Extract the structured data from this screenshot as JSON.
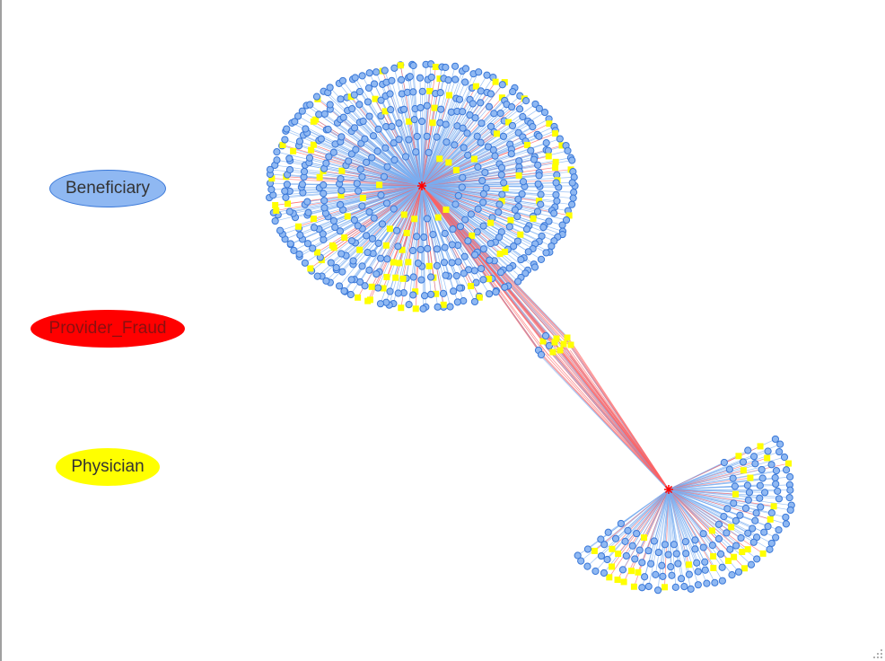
{
  "legend": {
    "beneficiary": "Beneficiary",
    "provider_fraud": "Provider_Fraud",
    "physician": "Physician"
  },
  "colors": {
    "beneficiary_fill": "#8fb8f2",
    "beneficiary_stroke": "#3a78d8",
    "provider_fraud": "#ff0000",
    "physician": "#ffff00",
    "edge_beneficiary": "#7aaef0",
    "edge_physician": "#ff6060"
  },
  "graph": {
    "type": "network",
    "node_types": [
      "Beneficiary",
      "Provider_Fraud",
      "Physician"
    ],
    "hubs": [
      "provider-1",
      "provider-2"
    ],
    "icons": [
      "resize-grip-icon"
    ]
  }
}
